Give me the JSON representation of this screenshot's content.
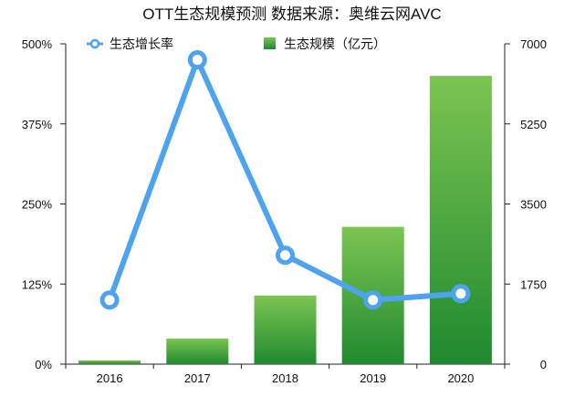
{
  "chart_data": {
    "type": "bar+line",
    "title": "OTT生态规模预测  数据来源：奥维云网AVC",
    "categories": [
      "2016",
      "2017",
      "2018",
      "2019",
      "2020"
    ],
    "series": [
      {
        "name": "生态规模（亿元）",
        "type": "bar",
        "axis": "right",
        "color": "#2ca02c",
        "values": [
          80,
          560,
          1500,
          3000,
          6300
        ]
      },
      {
        "name": "生态增长率",
        "type": "line",
        "axis": "left",
        "color": "#4da3f0",
        "values": [
          100,
          475,
          170,
          100,
          110
        ]
      }
    ],
    "left_axis": {
      "ticks": [
        "0%",
        "125%",
        "250%",
        "375%",
        "500%"
      ],
      "range": [
        0,
        500
      ]
    },
    "right_axis": {
      "ticks": [
        "0",
        "1750",
        "3500",
        "5250",
        "7000"
      ],
      "range": [
        0,
        7000
      ]
    },
    "legend": [
      "生态增长率",
      "生态规模（亿元）"
    ],
    "legend_position": "top"
  }
}
